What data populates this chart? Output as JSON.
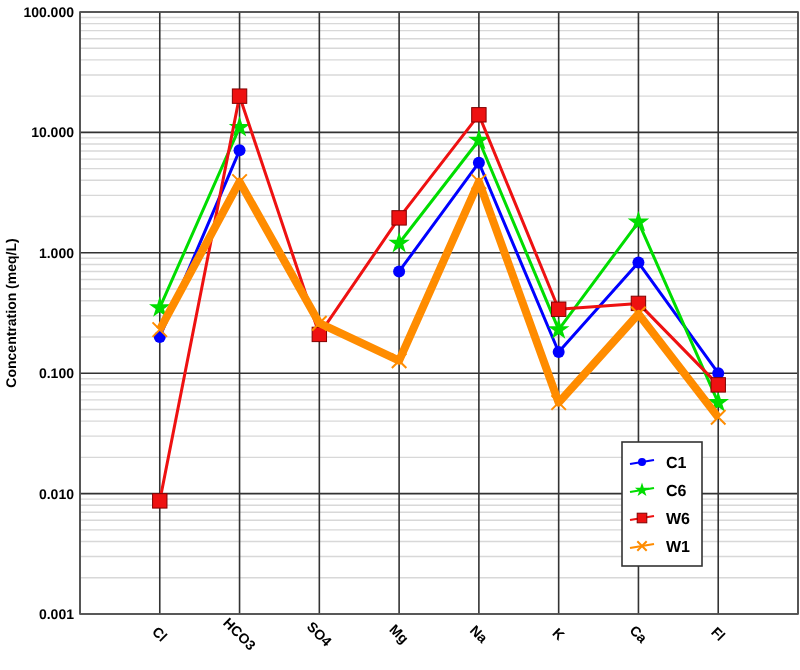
{
  "chart_data": {
    "type": "line",
    "ylabel": "Concentration (meq/L)",
    "categories": [
      "Cl",
      "HCO3",
      "SO4",
      "Mg",
      "Na",
      "K",
      "Ca",
      "Fl"
    ],
    "series": [
      {
        "name": "C1",
        "color": "#0000ff",
        "marker": "circle",
        "values": [
          0.2,
          7.1,
          null,
          0.7,
          5.6,
          0.15,
          0.83,
          0.1
        ]
      },
      {
        "name": "C6",
        "color": "#00dd00",
        "marker": "star",
        "values": [
          0.35,
          11,
          null,
          1.2,
          8.6,
          0.23,
          1.8,
          0.057
        ]
      },
      {
        "name": "W6",
        "color": "#ee1111",
        "marker": "square",
        "values": [
          0.0087,
          20,
          0.21,
          1.95,
          14,
          0.34,
          0.38,
          0.08
        ]
      },
      {
        "name": "W1",
        "color": "#ff8c00",
        "marker": "cross",
        "values": [
          0.23,
          3.9,
          0.26,
          0.127,
          3.9,
          0.057,
          0.31,
          0.043
        ]
      }
    ],
    "log": true,
    "ylim": [
      0.001,
      100
    ],
    "yticks": [
      {
        "value": 0.001,
        "label": "0.001"
      },
      {
        "value": 0.01,
        "label": "0.010"
      },
      {
        "value": 0.1,
        "label": "0.100"
      },
      {
        "value": 1,
        "label": "1.000"
      },
      {
        "value": 10,
        "label": "10.000"
      },
      {
        "value": 100,
        "label": "100.000"
      }
    ],
    "grid": true,
    "legend": "bottom right"
  }
}
